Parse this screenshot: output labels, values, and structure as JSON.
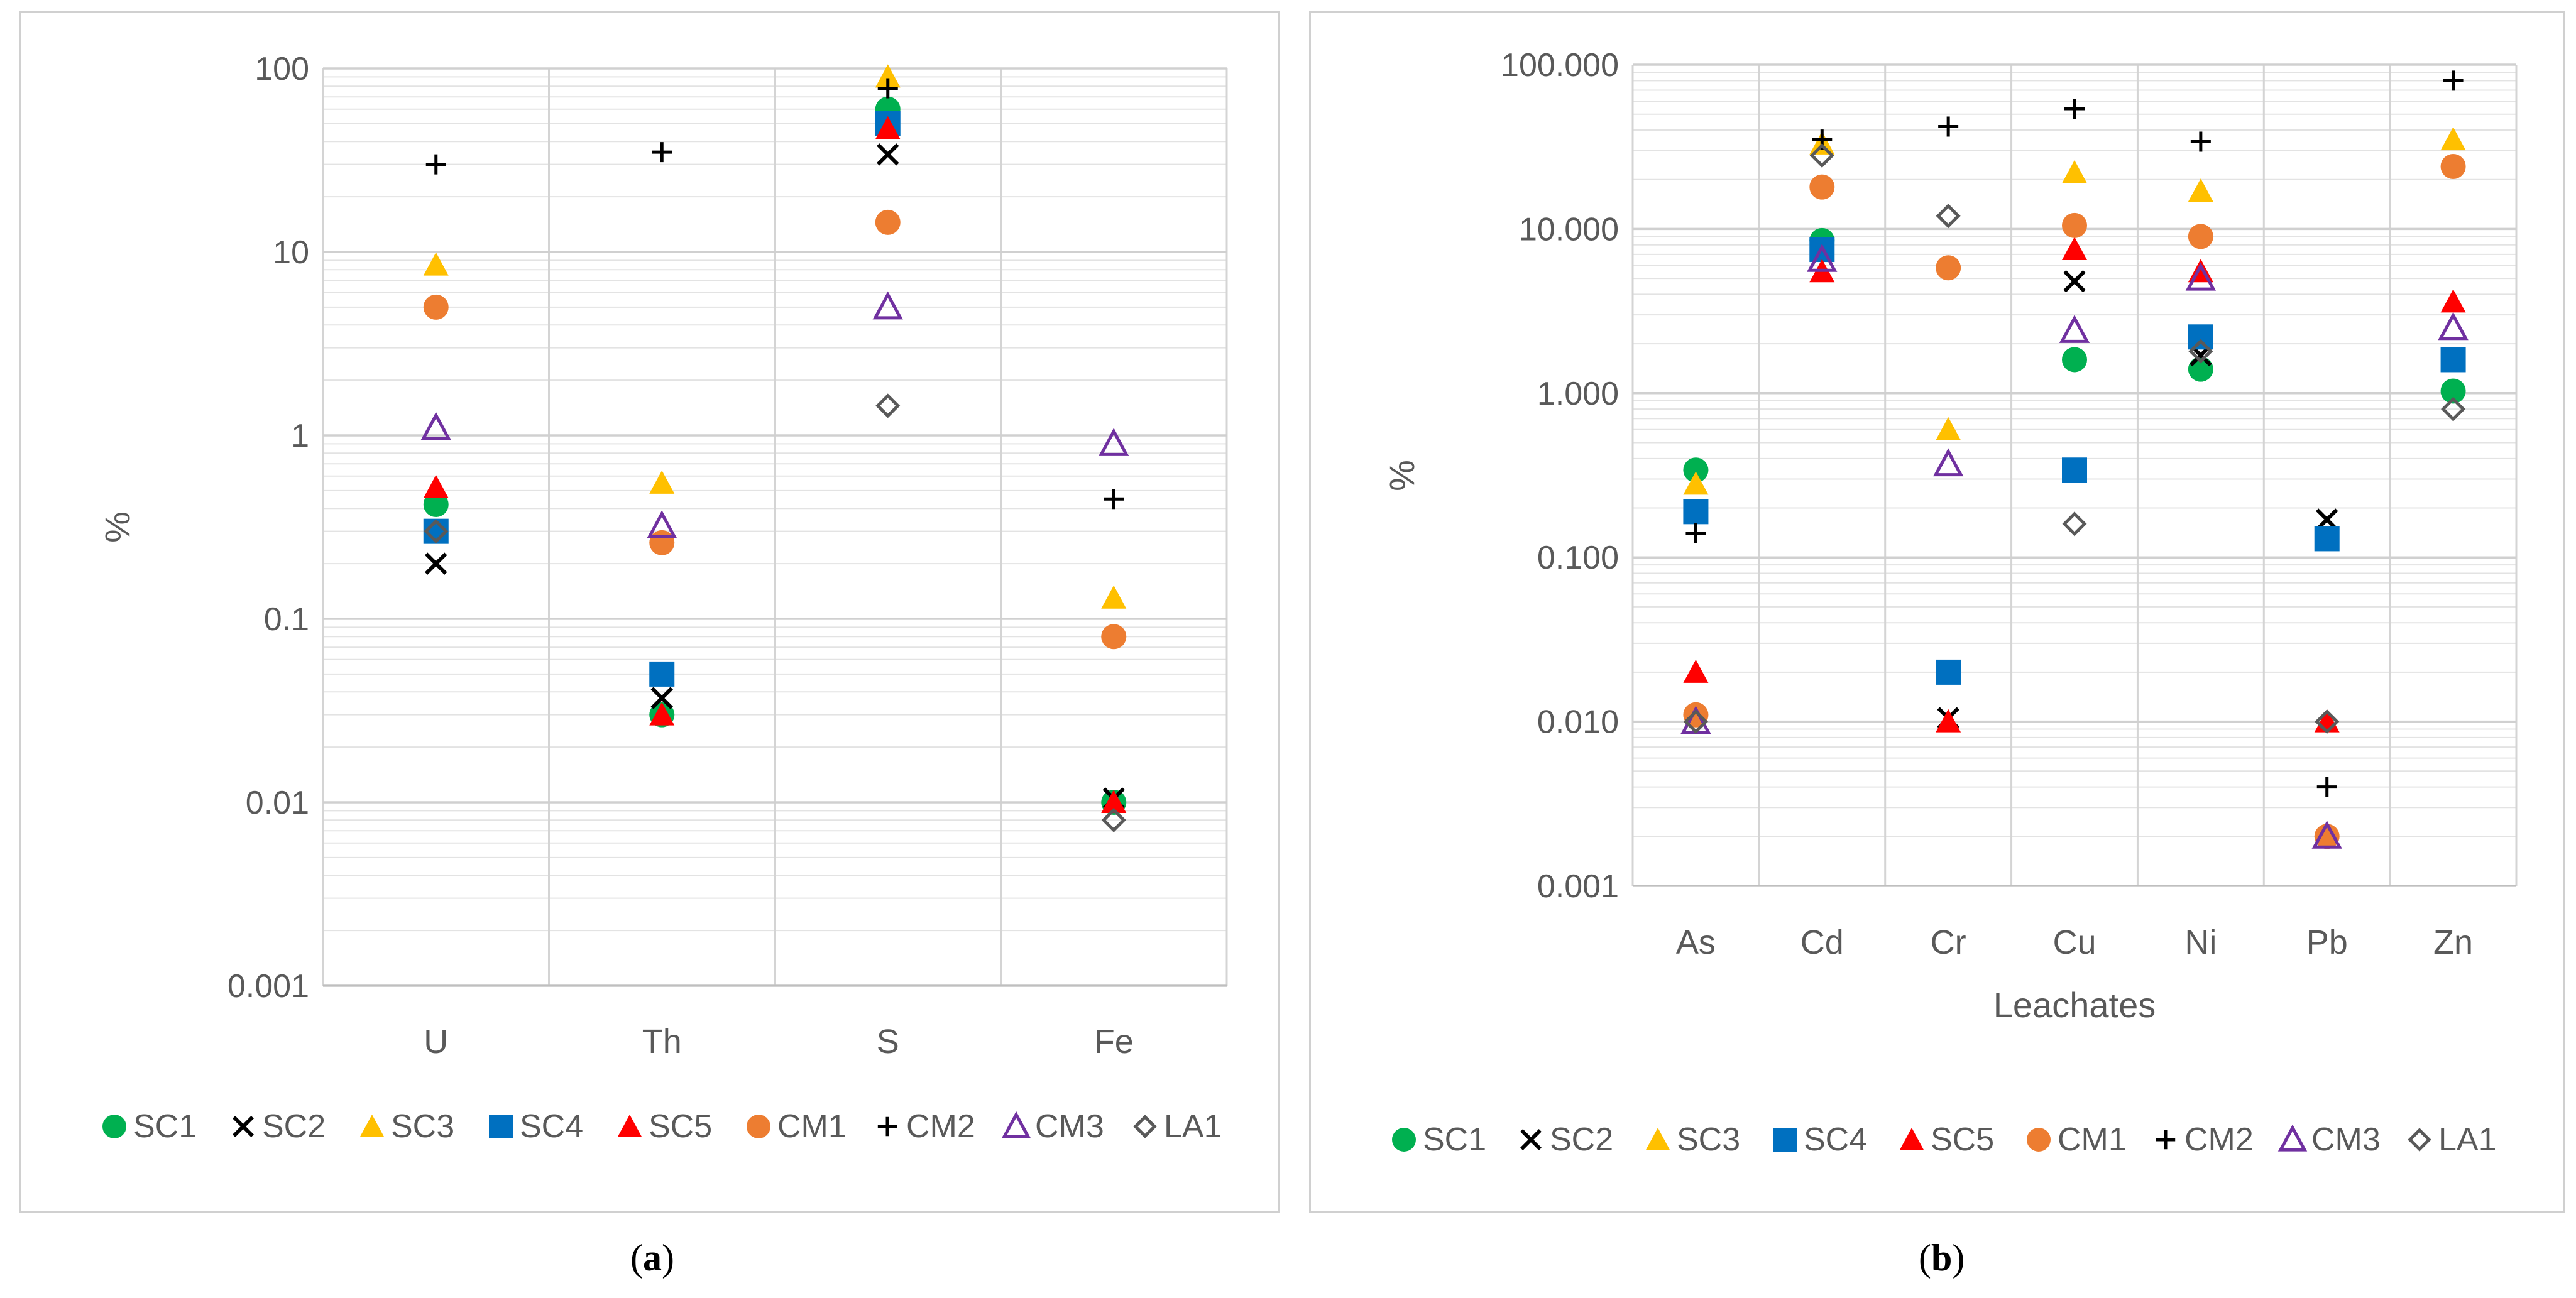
{
  "chart_data": [
    {
      "type": "scatter",
      "panel_label": "(a)",
      "panel_letter": "a",
      "title": "",
      "xlabel": "",
      "ylabel": "%",
      "y_scale": "log",
      "ylim": [
        0.001,
        100
      ],
      "y_ticks": [
        0.001,
        0.01,
        0.1,
        1,
        10,
        100
      ],
      "y_tick_labels": [
        "0.001",
        "0.01",
        "0.1",
        "1",
        "10",
        "100"
      ],
      "categories": [
        "U",
        "Th",
        "S",
        "Fe"
      ],
      "legend_position": "bottom",
      "series": [
        {
          "name": "SC1",
          "marker": "circle",
          "color": "#00b050",
          "values": [
            0.42,
            0.03,
            60,
            0.01
          ]
        },
        {
          "name": "SC2",
          "marker": "x",
          "color": "#000000",
          "values": [
            0.2,
            0.037,
            34,
            0.0105
          ]
        },
        {
          "name": "SC3",
          "marker": "triangle",
          "color": "#ffc000",
          "values": [
            8.5,
            0.55,
            90,
            0.13
          ]
        },
        {
          "name": "SC4",
          "marker": "square",
          "color": "#0070c0",
          "values": [
            0.3,
            0.05,
            50,
            null
          ]
        },
        {
          "name": "SC5",
          "marker": "triangle",
          "color": "#ff0000",
          "values": [
            0.52,
            0.03,
            47,
            0.01
          ]
        },
        {
          "name": "CM1",
          "marker": "circle",
          "color": "#ed7d31",
          "values": [
            5,
            0.26,
            14.5,
            0.08
          ]
        },
        {
          "name": "CM2",
          "marker": "plus",
          "color": "#000000",
          "values": [
            30,
            35,
            78,
            0.45
          ]
        },
        {
          "name": "CM3",
          "marker": "triangle-open",
          "color": "#7030a0",
          "values": [
            1.1,
            0.32,
            5,
            0.9
          ]
        },
        {
          "name": "LA1",
          "marker": "diamond-open",
          "color": "#595959",
          "values": [
            0.3,
            null,
            1.45,
            0.008
          ]
        }
      ]
    },
    {
      "type": "scatter",
      "panel_label": "(b)",
      "panel_letter": "b",
      "title": "",
      "xlabel": "Leachates",
      "ylabel": "%",
      "y_scale": "log",
      "ylim": [
        0.001,
        100
      ],
      "y_ticks": [
        0.001,
        0.01,
        0.1,
        1,
        10,
        100
      ],
      "y_tick_labels": [
        "0.001",
        "0.010",
        "0.100",
        "1.000",
        "10.000",
        "100.000"
      ],
      "categories": [
        "As",
        "Cd",
        "Cr",
        "Cu",
        "Ni",
        "Pb",
        "Zn"
      ],
      "legend_position": "bottom",
      "series": [
        {
          "name": "SC1",
          "marker": "circle",
          "color": "#00b050",
          "values": [
            0.34,
            8.5,
            null,
            1.6,
            1.4,
            null,
            1.03
          ]
        },
        {
          "name": "SC2",
          "marker": "x",
          "color": "#000000",
          "values": [
            null,
            null,
            0.0105,
            4.8,
            1.7,
            0.17,
            null
          ]
        },
        {
          "name": "SC3",
          "marker": "triangle",
          "color": "#ffc000",
          "values": [
            0.28,
            33,
            0.6,
            22,
            17,
            null,
            35
          ]
        },
        {
          "name": "SC4",
          "marker": "square",
          "color": "#0070c0",
          "values": [
            0.19,
            7.5,
            0.02,
            0.34,
            2.2,
            0.13,
            1.6
          ]
        },
        {
          "name": "SC5",
          "marker": "triangle",
          "color": "#ff0000",
          "values": [
            0.02,
            5.5,
            0.01,
            7.5,
            5.5,
            0.01,
            3.6
          ]
        },
        {
          "name": "CM1",
          "marker": "circle",
          "color": "#ed7d31",
          "values": [
            0.011,
            18,
            5.8,
            10.5,
            9,
            0.002,
            24
          ]
        },
        {
          "name": "CM2",
          "marker": "plus",
          "color": "#000000",
          "values": [
            0.14,
            35,
            42,
            54,
            34,
            0.004,
            80
          ]
        },
        {
          "name": "CM3",
          "marker": "triangle-open",
          "color": "#7030a0",
          "values": [
            0.01,
            6.5,
            0.37,
            2.4,
            5,
            0.002,
            2.5
          ]
        },
        {
          "name": "LA1",
          "marker": "diamond-open",
          "color": "#595959",
          "values": [
            0.01,
            28,
            12,
            0.16,
            1.8,
            0.01,
            0.8
          ]
        }
      ]
    }
  ]
}
